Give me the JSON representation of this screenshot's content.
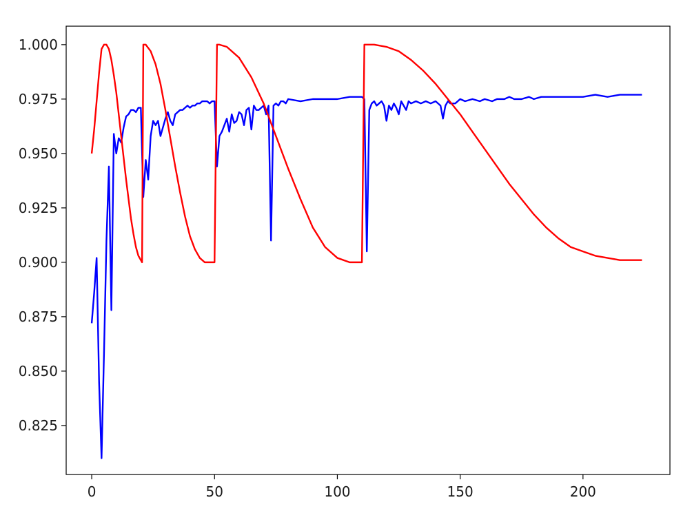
{
  "chart_data": {
    "type": "line",
    "title": "",
    "xlabel": "",
    "ylabel": "",
    "xlim": [
      -10.4,
      235.4
    ],
    "ylim": [
      0.8025,
      1.0085
    ],
    "xticks": [
      0,
      50,
      100,
      150,
      200
    ],
    "xtick_labels": [
      "0",
      "50",
      "100",
      "150",
      "200"
    ],
    "yticks": [
      0.825,
      0.85,
      0.875,
      0.9,
      0.925,
      0.95,
      0.975,
      1.0
    ],
    "ytick_labels": [
      "0.825",
      "0.850",
      "0.875",
      "0.900",
      "0.925",
      "0.950",
      "0.975",
      "1.000"
    ],
    "grid": false,
    "legend": "none",
    "series": [
      {
        "color": "#0000ff",
        "points": [
          [
            0,
            0.872
          ],
          [
            1,
            0.886
          ],
          [
            2,
            0.902
          ],
          [
            3,
            0.845
          ],
          [
            4,
            0.81
          ],
          [
            5,
            0.858
          ],
          [
            6,
            0.91
          ],
          [
            7,
            0.944
          ],
          [
            8,
            0.878
          ],
          [
            9,
            0.959
          ],
          [
            10,
            0.95
          ],
          [
            11,
            0.957
          ],
          [
            12,
            0.955
          ],
          [
            13,
            0.962
          ],
          [
            14,
            0.967
          ],
          [
            15,
            0.968
          ],
          [
            16,
            0.97
          ],
          [
            17,
            0.97
          ],
          [
            18,
            0.969
          ],
          [
            19,
            0.971
          ],
          [
            20,
            0.971
          ],
          [
            21,
            0.93
          ],
          [
            22,
            0.947
          ],
          [
            23,
            0.938
          ],
          [
            24,
            0.958
          ],
          [
            25,
            0.965
          ],
          [
            26,
            0.963
          ],
          [
            27,
            0.965
          ],
          [
            28,
            0.958
          ],
          [
            29,
            0.962
          ],
          [
            30,
            0.966
          ],
          [
            31,
            0.969
          ],
          [
            32,
            0.965
          ],
          [
            33,
            0.963
          ],
          [
            34,
            0.968
          ],
          [
            35,
            0.969
          ],
          [
            36,
            0.97
          ],
          [
            37,
            0.97
          ],
          [
            38,
            0.971
          ],
          [
            39,
            0.972
          ],
          [
            40,
            0.971
          ],
          [
            41,
            0.972
          ],
          [
            42,
            0.972
          ],
          [
            43,
            0.973
          ],
          [
            44,
            0.973
          ],
          [
            45,
            0.974
          ],
          [
            46,
            0.974
          ],
          [
            47,
            0.974
          ],
          [
            48,
            0.973
          ],
          [
            49,
            0.974
          ],
          [
            50,
            0.974
          ],
          [
            51,
            0.944
          ],
          [
            52,
            0.958
          ],
          [
            53,
            0.96
          ],
          [
            54,
            0.963
          ],
          [
            55,
            0.966
          ],
          [
            56,
            0.96
          ],
          [
            57,
            0.968
          ],
          [
            58,
            0.964
          ],
          [
            59,
            0.965
          ],
          [
            60,
            0.969
          ],
          [
            61,
            0.968
          ],
          [
            62,
            0.963
          ],
          [
            63,
            0.97
          ],
          [
            64,
            0.971
          ],
          [
            65,
            0.961
          ],
          [
            66,
            0.972
          ],
          [
            67,
            0.97
          ],
          [
            68,
            0.97
          ],
          [
            69,
            0.971
          ],
          [
            70,
            0.972
          ],
          [
            71,
            0.968
          ],
          [
            72,
            0.972
          ],
          [
            73,
            0.91
          ],
          [
            74,
            0.972
          ],
          [
            75,
            0.973
          ],
          [
            76,
            0.972
          ],
          [
            77,
            0.974
          ],
          [
            78,
            0.974
          ],
          [
            79,
            0.973
          ],
          [
            80,
            0.975
          ],
          [
            85,
            0.974
          ],
          [
            90,
            0.975
          ],
          [
            95,
            0.975
          ],
          [
            100,
            0.975
          ],
          [
            105,
            0.976
          ],
          [
            110,
            0.976
          ],
          [
            111,
            0.975
          ],
          [
            112,
            0.905
          ],
          [
            113,
            0.97
          ],
          [
            114,
            0.973
          ],
          [
            115,
            0.974
          ],
          [
            116,
            0.972
          ],
          [
            117,
            0.973
          ],
          [
            118,
            0.974
          ],
          [
            119,
            0.972
          ],
          [
            120,
            0.965
          ],
          [
            121,
            0.972
          ],
          [
            122,
            0.97
          ],
          [
            123,
            0.973
          ],
          [
            124,
            0.971
          ],
          [
            125,
            0.968
          ],
          [
            126,
            0.974
          ],
          [
            127,
            0.972
          ],
          [
            128,
            0.97
          ],
          [
            129,
            0.974
          ],
          [
            130,
            0.973
          ],
          [
            132,
            0.974
          ],
          [
            134,
            0.973
          ],
          [
            136,
            0.974
          ],
          [
            138,
            0.973
          ],
          [
            140,
            0.974
          ],
          [
            142,
            0.972
          ],
          [
            143,
            0.966
          ],
          [
            144,
            0.972
          ],
          [
            145,
            0.974
          ],
          [
            146,
            0.973
          ],
          [
            148,
            0.973
          ],
          [
            150,
            0.975
          ],
          [
            152,
            0.974
          ],
          [
            155,
            0.975
          ],
          [
            158,
            0.974
          ],
          [
            160,
            0.975
          ],
          [
            163,
            0.974
          ],
          [
            165,
            0.975
          ],
          [
            168,
            0.975
          ],
          [
            170,
            0.976
          ],
          [
            172,
            0.975
          ],
          [
            175,
            0.975
          ],
          [
            178,
            0.976
          ],
          [
            180,
            0.975
          ],
          [
            183,
            0.976
          ],
          [
            185,
            0.976
          ],
          [
            190,
            0.976
          ],
          [
            195,
            0.976
          ],
          [
            200,
            0.976
          ],
          [
            205,
            0.977
          ],
          [
            210,
            0.976
          ],
          [
            215,
            0.977
          ],
          [
            220,
            0.977
          ],
          [
            224,
            0.977
          ]
        ]
      },
      {
        "color": "#ff0000",
        "points": [
          [
            0,
            0.95
          ],
          [
            1,
            0.961
          ],
          [
            2,
            0.974
          ],
          [
            3,
            0.987
          ],
          [
            4,
            0.998
          ],
          [
            5,
            1.0
          ],
          [
            6,
            1.0
          ],
          [
            7,
            0.998
          ],
          [
            8,
            0.993
          ],
          [
            9,
            0.986
          ],
          [
            10,
            0.978
          ],
          [
            11,
            0.968
          ],
          [
            12,
            0.958
          ],
          [
            13,
            0.948
          ],
          [
            14,
            0.938
          ],
          [
            15,
            0.929
          ],
          [
            16,
            0.92
          ],
          [
            17,
            0.913
          ],
          [
            18,
            0.907
          ],
          [
            19,
            0.903
          ],
          [
            20,
            0.901
          ],
          [
            20.5,
            0.9
          ],
          [
            21,
            1.0
          ],
          [
            22,
            1.0
          ],
          [
            24,
            0.997
          ],
          [
            26,
            0.991
          ],
          [
            28,
            0.982
          ],
          [
            30,
            0.97
          ],
          [
            32,
            0.957
          ],
          [
            34,
            0.944
          ],
          [
            36,
            0.932
          ],
          [
            38,
            0.921
          ],
          [
            40,
            0.912
          ],
          [
            42,
            0.906
          ],
          [
            44,
            0.902
          ],
          [
            46,
            0.9
          ],
          [
            48,
            0.9
          ],
          [
            50,
            0.9
          ],
          [
            51,
            1.0
          ],
          [
            52,
            1.0
          ],
          [
            55,
            0.999
          ],
          [
            60,
            0.994
          ],
          [
            65,
            0.985
          ],
          [
            70,
            0.973
          ],
          [
            75,
            0.958
          ],
          [
            80,
            0.943
          ],
          [
            85,
            0.929
          ],
          [
            90,
            0.916
          ],
          [
            95,
            0.907
          ],
          [
            100,
            0.902
          ],
          [
            105,
            0.9
          ],
          [
            110,
            0.9
          ],
          [
            111,
            1.0
          ],
          [
            115,
            1.0
          ],
          [
            120,
            0.999
          ],
          [
            125,
            0.997
          ],
          [
            130,
            0.993
          ],
          [
            135,
            0.988
          ],
          [
            140,
            0.982
          ],
          [
            145,
            0.975
          ],
          [
            150,
            0.968
          ],
          [
            155,
            0.96
          ],
          [
            160,
            0.952
          ],
          [
            165,
            0.944
          ],
          [
            170,
            0.936
          ],
          [
            175,
            0.929
          ],
          [
            180,
            0.922
          ],
          [
            185,
            0.916
          ],
          [
            190,
            0.911
          ],
          [
            195,
            0.907
          ],
          [
            200,
            0.905
          ],
          [
            205,
            0.903
          ],
          [
            210,
            0.902
          ],
          [
            215,
            0.901
          ],
          [
            220,
            0.901
          ],
          [
            224,
            0.901
          ]
        ]
      }
    ]
  }
}
